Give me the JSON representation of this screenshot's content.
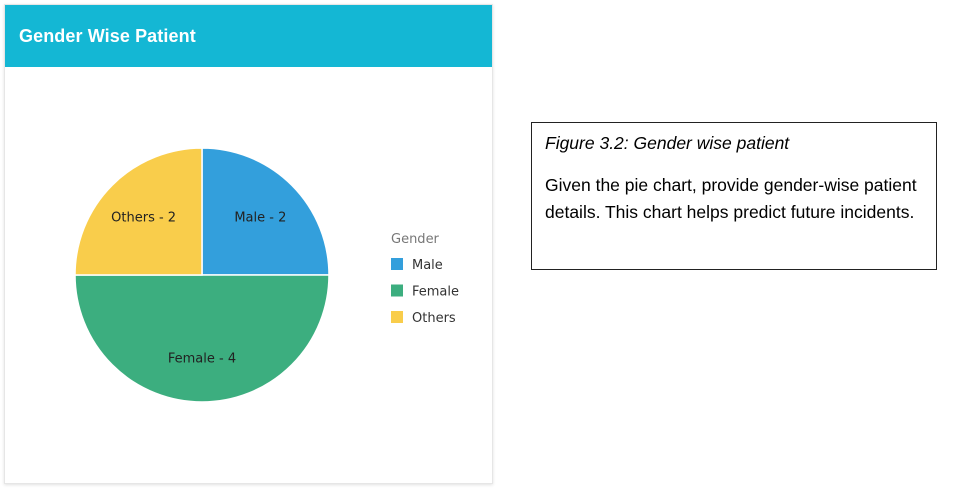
{
  "card": {
    "title": "Gender Wise Patient"
  },
  "chart_data": {
    "type": "pie",
    "categories": [
      "Male",
      "Female",
      "Others"
    ],
    "values": [
      2,
      4,
      2
    ],
    "slice_labels": [
      "Male - 2",
      "Female - 4",
      "Others - 2"
    ],
    "colors": [
      "#339fdc",
      "#3cae7f",
      "#f9cd4b"
    ],
    "legend": {
      "title": "Gender",
      "placement": "right",
      "entries": [
        "Male",
        "Female",
        "Others"
      ]
    }
  },
  "figure": {
    "caption": "Figure 3.2: Gender wise patient",
    "text": "Given the pie chart, provide gender-wise patient details. This chart helps predict future incidents."
  }
}
